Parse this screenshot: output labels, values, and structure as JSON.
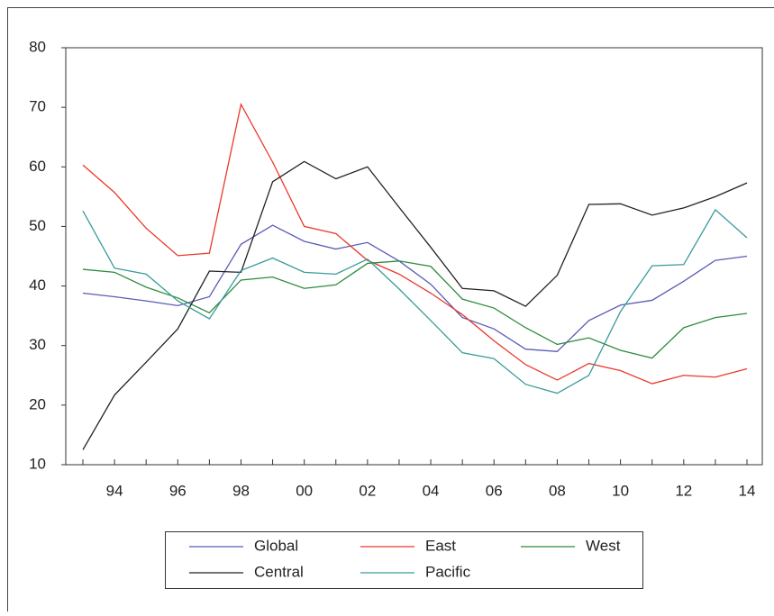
{
  "chart_data": {
    "type": "line",
    "categories": [
      null,
      "94",
      null,
      "96",
      null,
      "98",
      null,
      "00",
      null,
      "02",
      null,
      "04",
      null,
      "06",
      null,
      "08",
      null,
      "10",
      null,
      "12",
      null,
      "14"
    ],
    "ylim": [
      10,
      80
    ],
    "yticks": [
      10,
      20,
      30,
      40,
      50,
      60,
      70,
      80
    ],
    "legend": "bottom",
    "series": [
      {
        "name": "Global",
        "color": "#5b5bb5",
        "values": [
          38.8,
          38.2,
          37.5,
          36.7,
          38.2,
          47.0,
          50.2,
          47.5,
          46.2,
          47.3,
          44.2,
          40.3,
          34.7,
          32.8,
          29.4,
          29.0,
          34.2,
          36.8,
          37.6,
          40.8,
          44.3,
          45.0
        ]
      },
      {
        "name": "East",
        "color": "#e8392b",
        "values": [
          60.3,
          55.7,
          49.7,
          45.1,
          45.5,
          70.5,
          60.8,
          50.0,
          48.8,
          44.3,
          42.0,
          38.8,
          35.2,
          30.8,
          26.8,
          24.2,
          27.0,
          25.8,
          23.6,
          25.0,
          24.7,
          26.1
        ]
      },
      {
        "name": "West",
        "color": "#2e8b3e",
        "values": [
          42.8,
          42.3,
          39.8,
          38.0,
          35.5,
          41.0,
          41.5,
          39.6,
          40.2,
          43.8,
          44.2,
          43.3,
          37.8,
          36.3,
          33.0,
          30.2,
          31.3,
          29.2,
          27.9,
          33.0,
          34.7,
          35.4
        ]
      },
      {
        "name": "Central",
        "color": "#222222",
        "values": [
          12.5,
          21.7,
          27.2,
          32.8,
          42.5,
          42.3,
          57.5,
          60.9,
          58.0,
          60.0,
          53.2,
          46.5,
          39.6,
          39.2,
          36.6,
          41.8,
          53.7,
          53.8,
          51.9,
          53.1,
          55.0,
          57.3
        ]
      },
      {
        "name": "Pacific",
        "color": "#3a9a9a",
        "values": [
          52.6,
          43.0,
          42.0,
          37.5,
          34.5,
          42.6,
          44.7,
          42.3,
          42.0,
          44.5,
          39.5,
          34.2,
          28.8,
          27.8,
          23.5,
          22.0,
          25.0,
          35.7,
          43.4,
          43.6,
          52.8,
          48.1
        ]
      }
    ]
  }
}
